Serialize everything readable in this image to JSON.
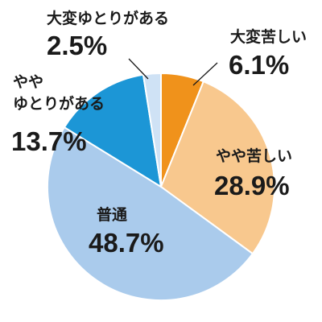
{
  "chart_data": {
    "type": "pie",
    "title": "",
    "start_angle_deg": 0,
    "direction": "clockwise",
    "slices": [
      {
        "name_lines": [
          "大変苦しい"
        ],
        "value": 6.1,
        "value_text": "6.1%",
        "color": "#F0921B"
      },
      {
        "name_lines": [
          "やや苦しい"
        ],
        "value": 28.9,
        "value_text": "28.9%",
        "color": "#F8C88E"
      },
      {
        "name_lines": [
          "普通"
        ],
        "value": 48.7,
        "value_text": "48.7%",
        "color": "#AACBEC"
      },
      {
        "name_lines": [
          "やや",
          "ゆとりがある"
        ],
        "value": 13.7,
        "value_text": "13.7%",
        "color": "#1C96D6"
      },
      {
        "name_lines": [
          "大変ゆとりがある"
        ],
        "value": 2.5,
        "value_text": "2.5%",
        "color": "#CFE2F5"
      }
    ]
  }
}
